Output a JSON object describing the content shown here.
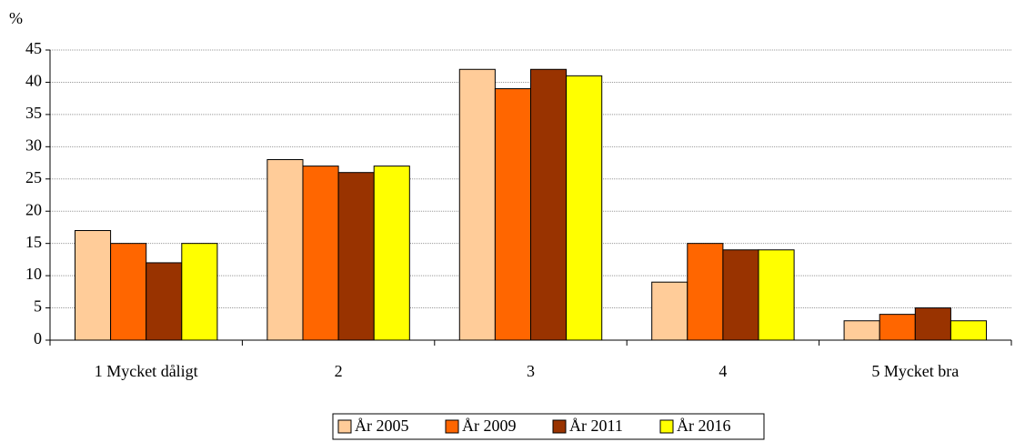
{
  "chart_data": {
    "type": "bar",
    "ylabel": "%",
    "categories": [
      "1 Mycket dåligt",
      "2",
      "3",
      "4",
      "5 Mycket bra"
    ],
    "series": [
      {
        "name": "År 2005",
        "color": "#FFCC99",
        "values": [
          17,
          28,
          42,
          9,
          3
        ]
      },
      {
        "name": "År 2009",
        "color": "#FF6600",
        "values": [
          15,
          27,
          39,
          15,
          4
        ]
      },
      {
        "name": "År 2011",
        "color": "#993300",
        "values": [
          12,
          26,
          42,
          14,
          5
        ]
      },
      {
        "name": "År 2016",
        "color": "#FFFF00",
        "values": [
          15,
          27,
          41,
          14,
          3
        ]
      }
    ],
    "ylim": [
      0,
      45
    ],
    "yticks": [
      0,
      5,
      10,
      15,
      20,
      25,
      30,
      35,
      40,
      45
    ],
    "grid": true,
    "legend": "bottom"
  }
}
